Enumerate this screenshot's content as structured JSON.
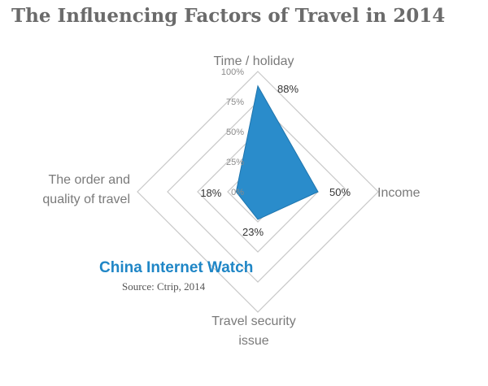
{
  "chart_data": {
    "type": "radar",
    "title": "The Influencing Factors of Travel in 2014",
    "axes": [
      {
        "name": "Time / holiday",
        "value": 88,
        "label": "88%"
      },
      {
        "name": "Income",
        "value": 50,
        "label": "50%"
      },
      {
        "name": "Travel security issue",
        "value": 23,
        "label": "23%"
      },
      {
        "name": "The order and quality of travel",
        "value": 18,
        "label": "18%"
      }
    ],
    "ticks": [
      {
        "value": 0,
        "label": "0%"
      },
      {
        "value": 25,
        "label": "25%"
      },
      {
        "value": 50,
        "label": "50%"
      },
      {
        "value": 75,
        "label": "75%"
      },
      {
        "value": 100,
        "label": "100%"
      }
    ],
    "range": [
      0,
      100
    ],
    "series_color": "#2a8ccb",
    "grid_color": "#c8c8c8"
  },
  "watermark": "China Internet Watch",
  "source": "Source: Ctrip, 2014"
}
